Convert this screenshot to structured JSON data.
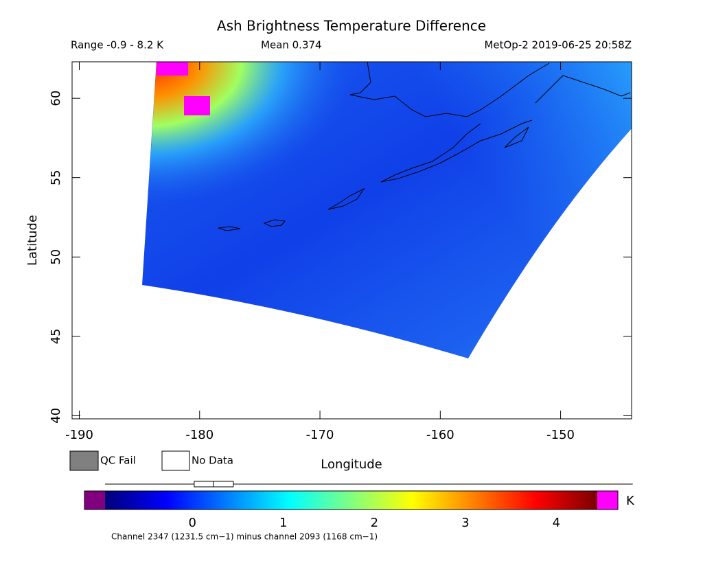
{
  "chart_data": {
    "type": "swath-map",
    "title": "Ash Brightness Temperature Difference",
    "range_label": "Range -0.9 - 8.2 K",
    "mean_label": "Mean 0.374",
    "source_label": "MetOp-2 2019-06-25 20:58Z",
    "xlabel": "Longitude",
    "ylabel": "Latitude",
    "xlim": [
      -190.6,
      -144.1
    ],
    "ylim": [
      39.8,
      62.3
    ],
    "xticks": [
      -190,
      -180,
      -170,
      -160,
      -150
    ],
    "yticks": [
      40,
      45,
      50,
      55,
      60
    ],
    "legend": [
      {
        "label": "QC Fail",
        "color": "#808080"
      },
      {
        "label": "No Data",
        "color": "#ffffff"
      }
    ],
    "colorbar": {
      "unit": "K",
      "clim": [
        -0.96,
        4.45
      ],
      "ticks": [
        0,
        1,
        2,
        3,
        4
      ],
      "under_color": "#800080",
      "over_color": "#ff00ff",
      "colormap": [
        "#00007a",
        "#0000ff",
        "#0080ff",
        "#00ffff",
        "#80ff80",
        "#ffff00",
        "#ff8000",
        "#ff0000",
        "#7a0000"
      ],
      "caption": "Channel 2347 (1231.5 cm−1) minus channel 2093 (1168 cm−1)"
    },
    "box": {
      "whisker_low": -0.96,
      "q1": 0.02,
      "median": 0.23,
      "q3": 0.45,
      "whisker_high": 4.84
    }
  }
}
